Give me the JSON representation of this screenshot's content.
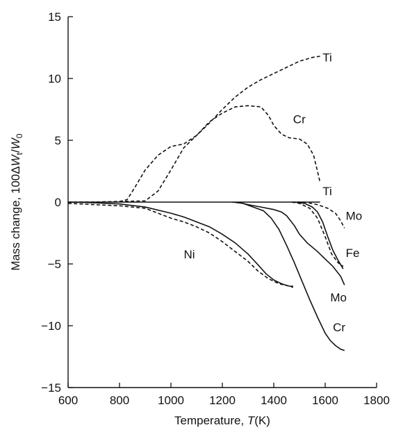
{
  "chart_data": {
    "type": "line",
    "title": "",
    "xlabel": "Temperature, ",
    "xlabel_var": "T",
    "xlabel_unit": "(K)",
    "ylabel_prefix": "Mass change, 100Δ",
    "ylabel_W": "W",
    "ylabel_sub_t": "t",
    "ylabel_slash": "/",
    "ylabel_W0": "W",
    "ylabel_sub_0": "0",
    "xlim": [
      600,
      1800
    ],
    "ylim": [
      -15,
      15
    ],
    "xticks": [
      600,
      800,
      1000,
      1200,
      1400,
      1600,
      1800
    ],
    "yticks": [
      -15,
      -10,
      -5,
      0,
      5,
      10,
      15
    ],
    "xtick_labels": [
      "600",
      "800",
      "1000",
      "1200",
      "1400",
      "1600",
      "1800"
    ],
    "ytick_labels": [
      "−15",
      "−10",
      "−5",
      "0",
      "5",
      "10",
      "15"
    ],
    "grid": false,
    "legend": "none",
    "series": [
      {
        "name": "Ti",
        "style": "dashed",
        "label_at": [
          1590,
          11.7
        ],
        "x": [
          600,
          700,
          800,
          900,
          950,
          1000,
          1050,
          1100,
          1150,
          1200,
          1250,
          1300,
          1350,
          1400,
          1450,
          1500,
          1550,
          1580
        ],
        "y": [
          0,
          0,
          0.05,
          0.1,
          0.9,
          2.6,
          4.4,
          5.4,
          6.4,
          7.5,
          8.5,
          9.3,
          9.9,
          10.4,
          10.9,
          11.4,
          11.7,
          11.8
        ]
      },
      {
        "name": "Cr",
        "style": "dashed",
        "label_at": [
          1475,
          6.7
        ],
        "x": [
          600,
          700,
          800,
          830,
          860,
          900,
          950,
          1000,
          1050,
          1100,
          1150,
          1200,
          1250,
          1300,
          1350,
          1380,
          1400,
          1430,
          1460,
          1500,
          1530,
          1555,
          1570,
          1580
        ],
        "y": [
          0,
          0,
          0.05,
          0.2,
          1.2,
          2.6,
          3.8,
          4.5,
          4.7,
          5.4,
          6.5,
          7.2,
          7.7,
          7.8,
          7.7,
          7.0,
          6.2,
          5.5,
          5.2,
          5.1,
          4.7,
          3.8,
          2.5,
          1.6
        ]
      },
      {
        "name": "Ti",
        "style": "solid",
        "label_at": [
          1590,
          0.9
        ],
        "x": [
          600,
          800,
          1000,
          1200,
          1400,
          1580
        ],
        "y": [
          0,
          0,
          0,
          0,
          0,
          0
        ]
      },
      {
        "name": "Mo",
        "style": "dashed",
        "label_at": [
          1680,
          -1.1
        ],
        "x": [
          1470,
          1520,
          1570,
          1610,
          1640,
          1660,
          1675
        ],
        "y": [
          0,
          0,
          -0.2,
          -0.5,
          -0.9,
          -1.5,
          -2.1
        ]
      },
      {
        "name": "Fe",
        "style": "dashed",
        "label_at": [
          1680,
          -4.1
        ],
        "x": [
          1470,
          1500,
          1540,
          1570,
          1600,
          1625,
          1650,
          1670
        ],
        "y": [
          0,
          -0.1,
          -0.5,
          -1.3,
          -2.8,
          -4.2,
          -4.9,
          -5.2
        ]
      },
      {
        "name": "Fe",
        "style": "solid",
        "x": [
          1480,
          1520,
          1550,
          1570,
          1590,
          1610,
          1630,
          1650,
          1670
        ],
        "y": [
          0,
          -0.1,
          -0.4,
          -0.8,
          -1.6,
          -2.8,
          -3.9,
          -4.7,
          -5.4
        ]
      },
      {
        "name": "Mo",
        "style": "solid",
        "label_at": [
          1620,
          -7.7
        ],
        "x": [
          1260,
          1300,
          1350,
          1400,
          1430,
          1450,
          1480,
          1500,
          1530,
          1570,
          1600,
          1630,
          1660,
          1675
        ],
        "y": [
          0,
          -0.2,
          -0.4,
          -0.6,
          -0.8,
          -1.1,
          -1.9,
          -2.6,
          -3.3,
          -4.0,
          -4.6,
          -5.2,
          -6.0,
          -6.7
        ]
      },
      {
        "name": "Cr",
        "style": "solid",
        "label_at": [
          1630,
          -10.1
        ],
        "x": [
          1240,
          1280,
          1320,
          1360,
          1390,
          1420,
          1450,
          1480,
          1510,
          1540,
          1570,
          1600,
          1620,
          1640,
          1660,
          1675
        ],
        "y": [
          0,
          -0.1,
          -0.4,
          -0.7,
          -1.3,
          -2.2,
          -3.5,
          -4.9,
          -6.4,
          -7.9,
          -9.3,
          -10.6,
          -11.2,
          -11.6,
          -11.9,
          -12.0
        ]
      },
      {
        "name": "Ni",
        "style": "solid",
        "label_at": [
          1050,
          -4.2
        ],
        "x": [
          600,
          700,
          800,
          900,
          1000,
          1050,
          1100,
          1150,
          1200,
          1250,
          1300,
          1340,
          1370,
          1400,
          1430,
          1460,
          1475
        ],
        "y": [
          0,
          -0.05,
          -0.15,
          -0.4,
          -0.9,
          -1.2,
          -1.6,
          -2.0,
          -2.6,
          -3.3,
          -4.2,
          -5.1,
          -5.8,
          -6.3,
          -6.6,
          -6.8,
          -6.8
        ]
      },
      {
        "name": "Ni",
        "style": "dashed",
        "x": [
          600,
          700,
          800,
          900,
          950,
          1000,
          1050,
          1100,
          1150,
          1200,
          1250,
          1300,
          1340,
          1380,
          1420,
          1460,
          1475
        ],
        "y": [
          -0.1,
          -0.2,
          -0.3,
          -0.5,
          -0.9,
          -1.3,
          -1.6,
          -2.0,
          -2.5,
          -3.2,
          -4.0,
          -4.8,
          -5.6,
          -6.2,
          -6.6,
          -6.8,
          -6.9
        ]
      }
    ]
  }
}
